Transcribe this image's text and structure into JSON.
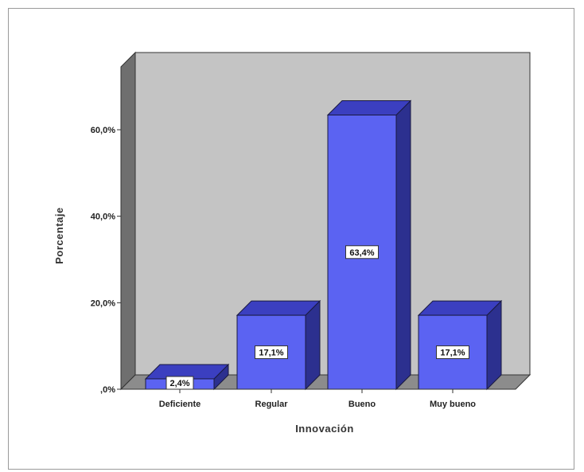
{
  "chart_data": {
    "type": "bar",
    "title": "",
    "xlabel": "Innovación",
    "ylabel": "Porcentaje",
    "categories": [
      "Deficiente",
      "Regular",
      "Bueno",
      "Muy bueno"
    ],
    "values": [
      2.4,
      17.1,
      63.4,
      17.1
    ],
    "data_labels": [
      "2,4%",
      "17,1%",
      "63,4%",
      "17,1%"
    ],
    "yticks": [
      0,
      20,
      40,
      60
    ],
    "ytick_labels": [
      ",0%",
      "20,0%",
      "40,0%",
      "60,0%"
    ],
    "ylim": [
      0,
      75
    ],
    "grid": false,
    "style": "3d",
    "colors": {
      "bar_front": "#5b63f2",
      "bar_top": "#3b3fc0",
      "bar_side": "#2c308f",
      "plot_back": "#c4c4c4",
      "plot_floor": "#8c8c8c",
      "plot_wall": "#6f6f6f"
    }
  }
}
